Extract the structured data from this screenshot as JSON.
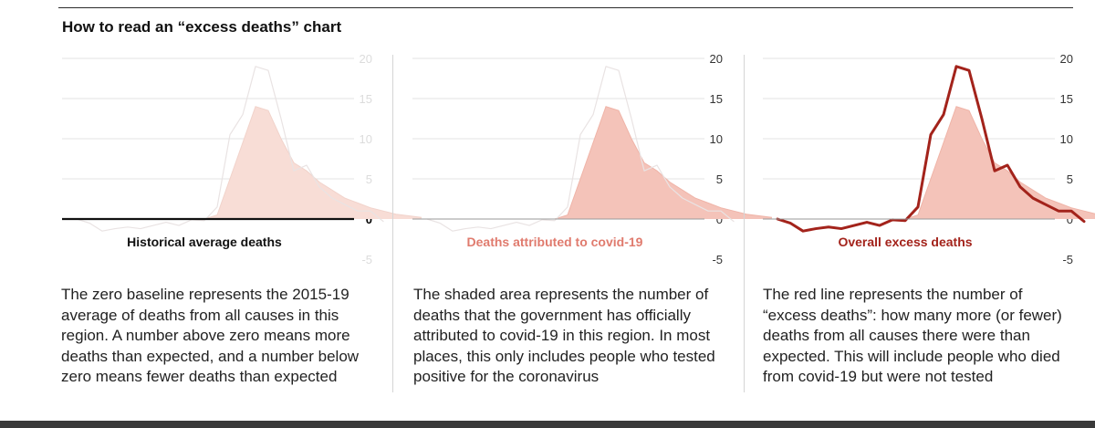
{
  "title": "How to read an “excess deaths” chart",
  "colors": {
    "grid": "#e3e3e3",
    "axis_text": "#333333",
    "faded_text": "#dcdcdc",
    "fill": "#f4c3b9",
    "fill_faded": "#f8ddd6",
    "excess_line": "#a3231b",
    "ghost_line": "#e9e3e3",
    "baseline": "#111111",
    "label_covid": "#e07b6e",
    "label_excess": "#a3231b",
    "label_dark": "#111111"
  },
  "chart_data": [
    {
      "type": "area",
      "panel": "historical",
      "label": "Historical average deaths",
      "y_ticks": [
        "20",
        "15",
        "10",
        "5",
        "0",
        "-5"
      ],
      "ylim": [
        -5,
        20
      ],
      "faded_elements": [
        "covid_deaths",
        "excess_deaths",
        "tick_labels_except_zero"
      ],
      "highlight": "baseline",
      "x_weeks": [
        1,
        2,
        3,
        4,
        5,
        6,
        7,
        8,
        9,
        10,
        11,
        12,
        13,
        14,
        15,
        16,
        17,
        18,
        19,
        20,
        21,
        22,
        23,
        24,
        25,
        26,
        27,
        28
      ],
      "excess_deaths": [
        0.0,
        -0.5,
        -1.5,
        -1.2,
        -1.0,
        -1.2,
        -0.8,
        -0.4,
        -0.8,
        -0.1,
        -0.2,
        1.5,
        10.5,
        13.0,
        19.0,
        18.5,
        12.5,
        6.0,
        6.7,
        4.0,
        2.6,
        1.8,
        1.0,
        1.0,
        -0.3,
        null,
        null,
        null
      ],
      "covid_deaths": [
        0,
        0,
        0,
        0,
        0,
        0,
        0,
        0,
        0,
        0,
        0,
        0.5,
        5.0,
        9.5,
        14.0,
        13.5,
        10.0,
        7.0,
        6.0,
        4.6,
        3.6,
        2.6,
        2.0,
        1.4,
        1.0,
        0.6,
        0.4,
        0.2
      ]
    },
    {
      "type": "area",
      "panel": "covid",
      "label": "Deaths attributed to covid-19",
      "y_ticks": [
        "20",
        "15",
        "10",
        "5",
        "0",
        "-5"
      ],
      "ylim": [
        -5,
        20
      ],
      "faded_elements": [
        "excess_deaths"
      ],
      "highlight": "covid_deaths",
      "x_weeks": [
        1,
        2,
        3,
        4,
        5,
        6,
        7,
        8,
        9,
        10,
        11,
        12,
        13,
        14,
        15,
        16,
        17,
        18,
        19,
        20,
        21,
        22,
        23,
        24,
        25,
        26,
        27,
        28
      ],
      "excess_deaths": [
        0.0,
        -0.5,
        -1.5,
        -1.2,
        -1.0,
        -1.2,
        -0.8,
        -0.4,
        -0.8,
        -0.1,
        -0.2,
        1.5,
        10.5,
        13.0,
        19.0,
        18.5,
        12.5,
        6.0,
        6.7,
        4.0,
        2.6,
        1.8,
        1.0,
        1.0,
        -0.3,
        null,
        null,
        null
      ],
      "covid_deaths": [
        0,
        0,
        0,
        0,
        0,
        0,
        0,
        0,
        0,
        0,
        0,
        0.5,
        5.0,
        9.5,
        14.0,
        13.5,
        10.0,
        7.0,
        6.0,
        4.6,
        3.6,
        2.6,
        2.0,
        1.4,
        1.0,
        0.6,
        0.4,
        0.2
      ]
    },
    {
      "type": "area",
      "panel": "excess",
      "label": "Overall excess deaths",
      "y_ticks": [
        "20",
        "15",
        "10",
        "5",
        "0",
        "-5"
      ],
      "ylim": [
        -5,
        20
      ],
      "faded_elements": [],
      "highlight": "excess_deaths",
      "x_weeks": [
        1,
        2,
        3,
        4,
        5,
        6,
        7,
        8,
        9,
        10,
        11,
        12,
        13,
        14,
        15,
        16,
        17,
        18,
        19,
        20,
        21,
        22,
        23,
        24,
        25,
        26,
        27,
        28
      ],
      "excess_deaths": [
        0.0,
        -0.5,
        -1.5,
        -1.2,
        -1.0,
        -1.2,
        -0.8,
        -0.4,
        -0.8,
        -0.1,
        -0.2,
        1.5,
        10.5,
        13.0,
        19.0,
        18.5,
        12.5,
        6.0,
        6.7,
        4.0,
        2.6,
        1.8,
        1.0,
        1.0,
        -0.3,
        null,
        null,
        null
      ],
      "covid_deaths": [
        0,
        0,
        0,
        0,
        0,
        0,
        0,
        0,
        0,
        0,
        0,
        0.5,
        5.0,
        9.5,
        14.0,
        13.5,
        10.0,
        7.0,
        6.0,
        4.6,
        3.6,
        2.6,
        2.0,
        1.4,
        1.0,
        0.6,
        0.4,
        0.2
      ]
    }
  ],
  "descriptions": [
    "The zero baseline represents the 2015-19 average of deaths from all causes in this region. A number above zero means more deaths than expected, and a number below zero means fewer deaths than expected",
    "The shaded area represents the number of deaths that the government has officially attributed to covid-19 in this region. In most places, this only includes people who tested positive for the coronavirus",
    "The red line represents the number of “excess deaths”: how many more (or fewer) deaths from all causes there were than expected. This will include people who died from covid-19 but were not tested"
  ]
}
